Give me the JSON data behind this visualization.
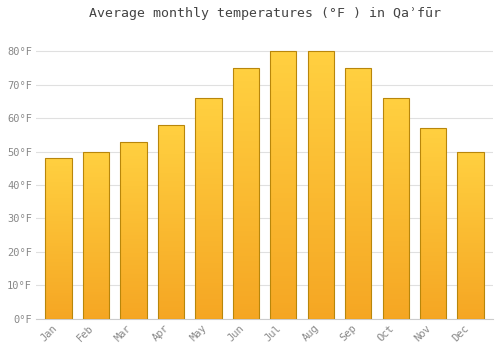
{
  "title": "Average monthly temperatures (°F ) in Qaʾfūr",
  "months": [
    "Jan",
    "Feb",
    "Mar",
    "Apr",
    "May",
    "Jun",
    "Jul",
    "Aug",
    "Sep",
    "Oct",
    "Nov",
    "Dec"
  ],
  "values": [
    48,
    50,
    53,
    58,
    66,
    75,
    80,
    80,
    75,
    66,
    57,
    50
  ],
  "bar_color_bottom": "#F5A623",
  "bar_color_top": "#FFD040",
  "bar_edge_color": "#B8860B",
  "background_color": "#ffffff",
  "plot_bg_color": "#ffffff",
  "grid_color": "#e0e0e0",
  "tick_label_color": "#888888",
  "title_color": "#444444",
  "ylim": [
    0,
    87
  ],
  "yticks": [
    0,
    10,
    20,
    30,
    40,
    50,
    60,
    70,
    80
  ],
  "ytick_labels": [
    "0°F",
    "10°F",
    "20°F",
    "30°F",
    "40°F",
    "50°F",
    "60°F",
    "70°F",
    "80°F"
  ],
  "bar_width": 0.7,
  "title_fontsize": 9.5
}
